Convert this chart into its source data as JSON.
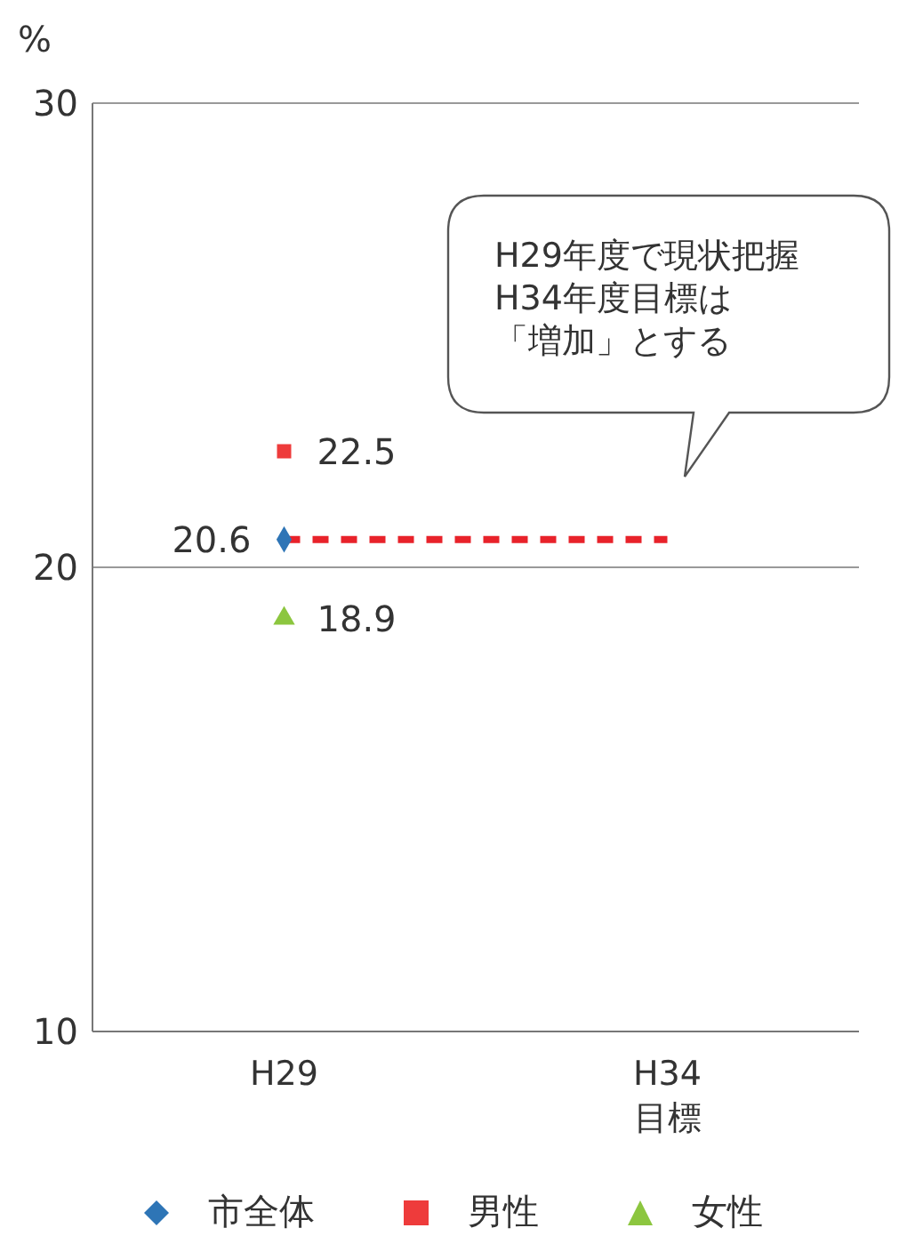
{
  "chart_data": {
    "type": "scatter",
    "ylabel": "%",
    "categories": [
      "H29",
      "H34\n目標"
    ],
    "ylim": [
      10,
      30
    ],
    "yticks": [
      10,
      20,
      30
    ],
    "grid": "y",
    "legend": "bottom",
    "series": [
      {
        "name": "市全体",
        "color": "#2e75b6",
        "marker": "diamond",
        "values": [
          20.6,
          null
        ],
        "value_labels": [
          "20.6",
          null
        ]
      },
      {
        "name": "男性",
        "color": "#ee3b3b",
        "marker": "square",
        "values": [
          22.5,
          null
        ],
        "value_labels": [
          "22.5",
          null
        ]
      },
      {
        "name": "女性",
        "color": "#8cc63f",
        "marker": "triangle",
        "values": [
          18.9,
          null
        ],
        "value_labels": [
          "18.9",
          null
        ]
      },
      {
        "type": "line",
        "color": "#e8222a",
        "line_style": "dashed",
        "values": [
          20.6,
          20.6
        ]
      }
    ],
    "annotations": [
      "H29年度で現状把握",
      "H34年度目標は",
      "「増加」とする"
    ]
  }
}
